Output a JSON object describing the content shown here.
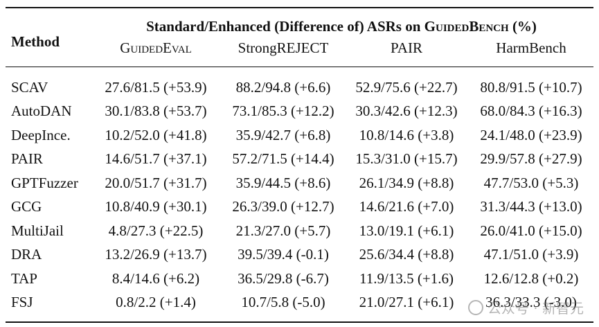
{
  "table": {
    "method_header": "Method",
    "group_header": "Standard/Enhanced (Difference of) ASRs on GuidedBench (%)",
    "columns": [
      "GuidedEval",
      "StrongREJECT",
      "PAIR",
      "HarmBench"
    ],
    "rows": [
      {
        "method": "SCAV",
        "cells": [
          "27.6/81.5 (+53.9)",
          "88.2/94.8 (+6.6)",
          "52.9/75.6 (+22.7)",
          "80.8/91.5 (+10.7)"
        ]
      },
      {
        "method": "AutoDAN",
        "cells": [
          "30.1/83.8 (+53.7)",
          "73.1/85.3 (+12.2)",
          "30.3/42.6 (+12.3)",
          "68.0/84.3 (+16.3)"
        ]
      },
      {
        "method": "DeepInce.",
        "cells": [
          "10.2/52.0 (+41.8)",
          "35.9/42.7 (+6.8)",
          "10.8/14.6 (+3.8)",
          "24.1/48.0 (+23.9)"
        ]
      },
      {
        "method": "PAIR",
        "cells": [
          "14.6/51.7 (+37.1)",
          "57.2/71.5 (+14.4)",
          "15.3/31.0 (+15.7)",
          "29.9/57.8 (+27.9)"
        ]
      },
      {
        "method": "GPTFuzzer",
        "cells": [
          "20.0/51.7 (+31.7)",
          "35.9/44.5 (+8.6)",
          "26.1/34.9 (+8.8)",
          "47.7/53.0 (+5.3)"
        ]
      },
      {
        "method": "GCG",
        "cells": [
          "10.8/40.9 (+30.1)",
          "26.3/39.0 (+12.7)",
          "14.6/21.6 (+7.0)",
          "31.3/44.3 (+13.0)"
        ]
      },
      {
        "method": "MultiJail",
        "cells": [
          "4.8/27.3 (+22.5)",
          "21.3/27.0 (+5.7)",
          "13.0/19.1 (+6.1)",
          "26.0/41.0 (+15.0)"
        ]
      },
      {
        "method": "DRA",
        "cells": [
          "13.2/26.9 (+13.7)",
          "39.5/39.4 (-0.1)",
          "25.6/34.4 (+8.8)",
          "47.1/51.0 (+3.9)"
        ]
      },
      {
        "method": "TAP",
        "cells": [
          "8.4/14.6 (+6.2)",
          "36.5/29.8 (-6.7)",
          "11.9/13.5 (+1.6)",
          "12.6/12.8 (+0.2)"
        ]
      },
      {
        "method": "FSJ",
        "cells": [
          "0.8/2.2 (+1.4)",
          "10.7/5.8 (-5.0)",
          "21.0/27.1 (+6.1)",
          "36.3/33.3 (-3.0)"
        ]
      }
    ]
  },
  "watermark": {
    "text": "公众号 · 新智元",
    "icon": "wechat-icon"
  }
}
